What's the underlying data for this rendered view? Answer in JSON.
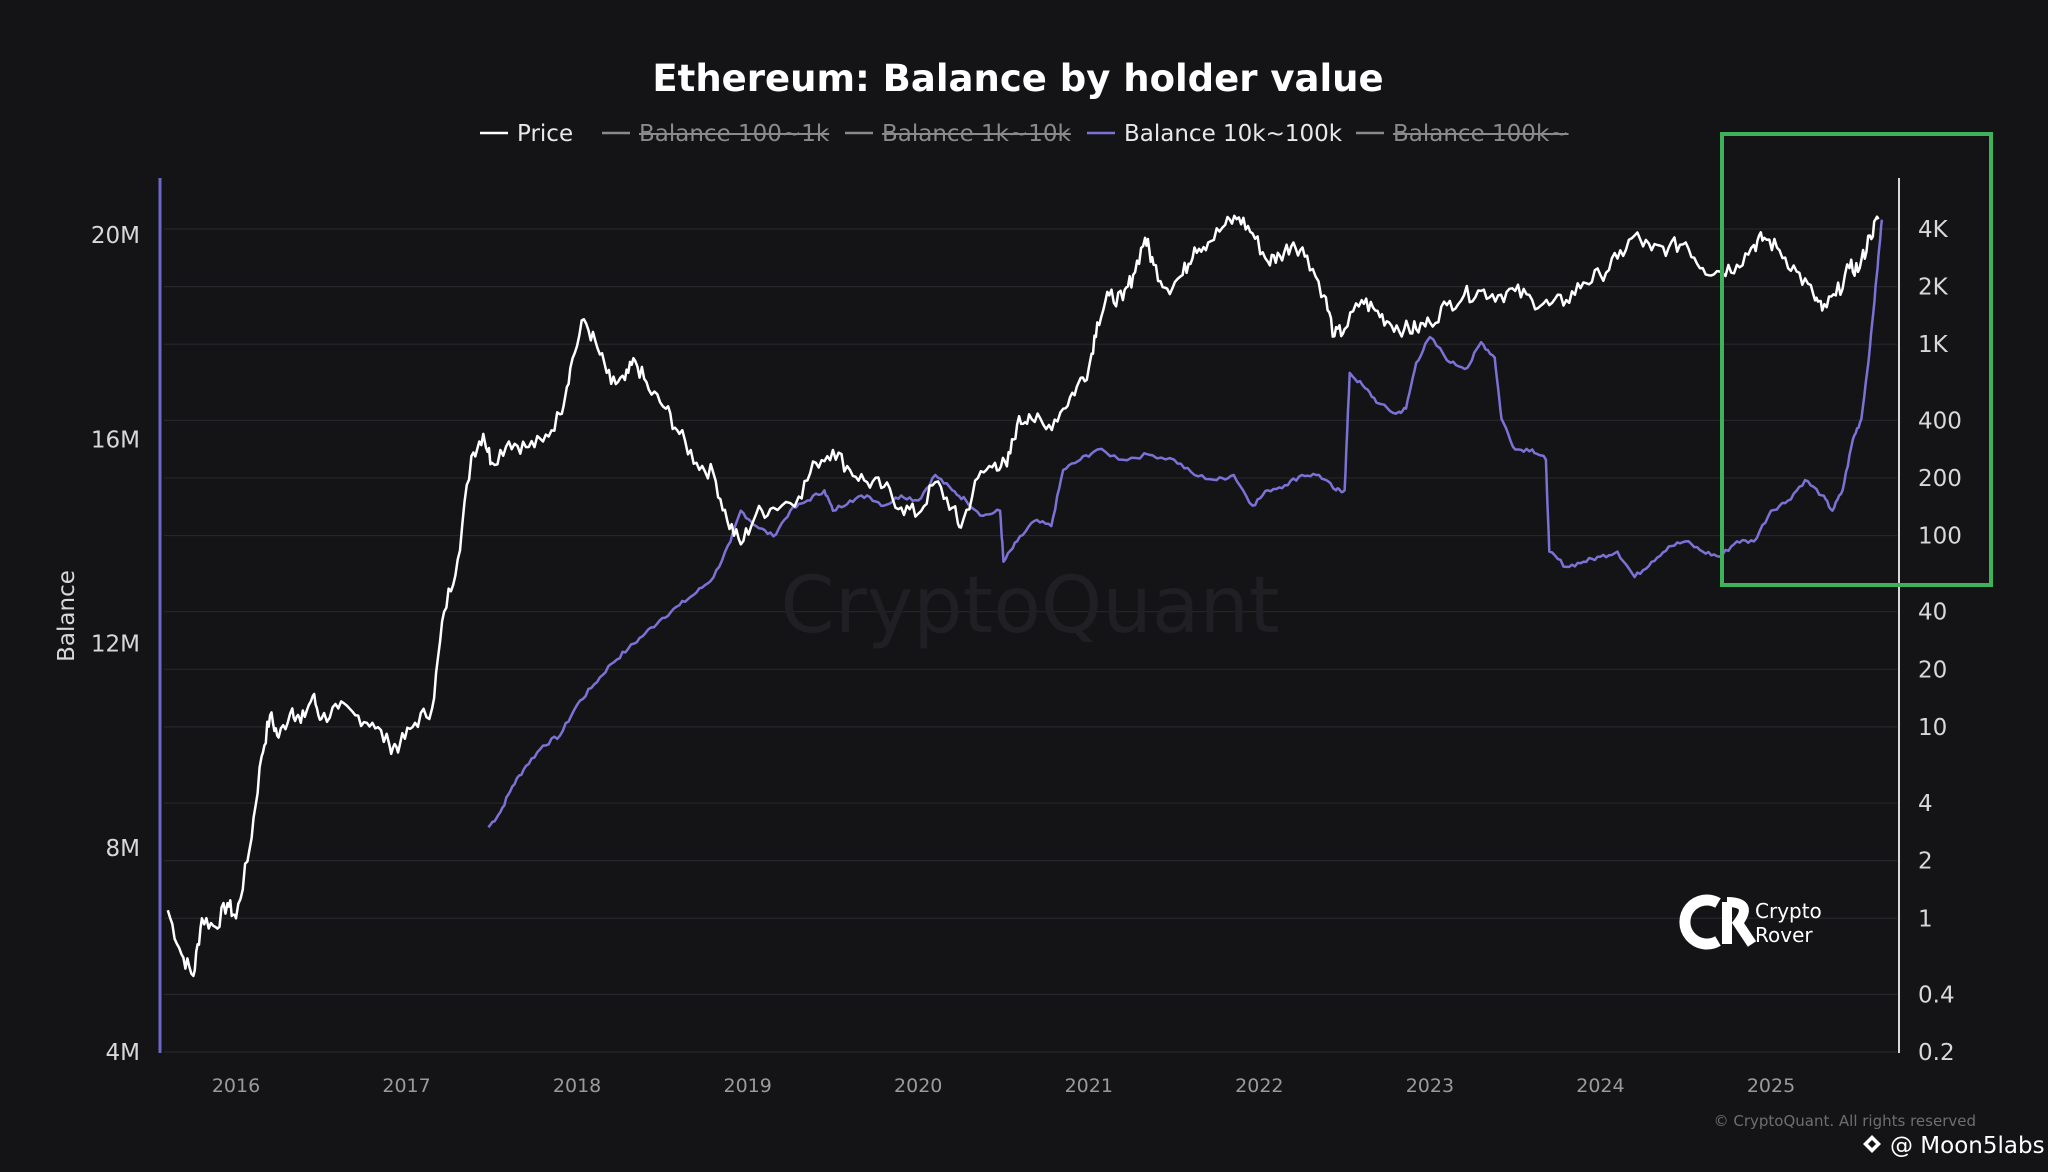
{
  "chart_data": {
    "type": "line",
    "title": "Ethereum: Balance by holder value",
    "ylabel": "Balance",
    "legend": [
      {
        "name": "Price",
        "color": "#ffffff",
        "active": true
      },
      {
        "name": "Balance 100~1k",
        "color": "#8a8a8a",
        "active": false
      },
      {
        "name": "Balance 1k~10k",
        "color": "#8a8a8a",
        "active": false
      },
      {
        "name": "Balance 10k~100k",
        "color": "#7b72d6",
        "active": true
      },
      {
        "name": "Balance 100k~",
        "color": "#8a8a8a",
        "active": false
      }
    ],
    "legend_placement": "top-center",
    "x_ticks": [
      "2016",
      "2017",
      "2018",
      "2019",
      "2020",
      "2021",
      "2022",
      "2023",
      "2024",
      "2025"
    ],
    "xlim": [
      2015.55,
      2025.7
    ],
    "y_left": {
      "label": "Balance",
      "ticks": [
        "20M",
        "16M",
        "12M",
        "8M",
        "4M"
      ],
      "tick_values": [
        20000000,
        16000000,
        12000000,
        8000000,
        4000000
      ],
      "range": [
        4000000,
        21000000
      ]
    },
    "y_right": {
      "scale": "log",
      "ticks": [
        "4K",
        "2K",
        "1K",
        "400",
        "200",
        "100",
        "40",
        "20",
        "10",
        "4",
        "2",
        "1",
        "0.4",
        "0.2"
      ],
      "tick_values": [
        4000,
        2000,
        1000,
        400,
        200,
        100,
        40,
        20,
        10,
        4,
        2,
        1,
        0.4,
        0.2
      ],
      "range": [
        0.2,
        8000
      ]
    },
    "grid": "horizontal",
    "highlight_box": {
      "x_range": [
        2024.7,
        2025.7
      ],
      "y_range_price": [
        60,
        8000
      ],
      "color": "#3fb15a"
    },
    "series": [
      {
        "name": "Price",
        "axis": "right",
        "color": "#ffffff",
        "points": [
          [
            2015.6,
            1.1
          ],
          [
            2015.68,
            0.65
          ],
          [
            2015.75,
            0.5
          ],
          [
            2015.8,
            1.0
          ],
          [
            2015.88,
            0.9
          ],
          [
            2015.95,
            1.2
          ],
          [
            2016.0,
            1.0
          ],
          [
            2016.08,
            2.3
          ],
          [
            2016.15,
            7.0
          ],
          [
            2016.2,
            11.5
          ],
          [
            2016.25,
            8.8
          ],
          [
            2016.33,
            12.5
          ],
          [
            2016.38,
            10.5
          ],
          [
            2016.45,
            14.5
          ],
          [
            2016.5,
            11.0
          ],
          [
            2016.6,
            12.5
          ],
          [
            2016.7,
            11.5
          ],
          [
            2016.8,
            10.5
          ],
          [
            2016.9,
            8.0
          ],
          [
            2016.96,
            8.0
          ],
          [
            2017.05,
            10.5
          ],
          [
            2017.15,
            12.5
          ],
          [
            2017.22,
            40.0
          ],
          [
            2017.3,
            75.0
          ],
          [
            2017.38,
            260
          ],
          [
            2017.45,
            340
          ],
          [
            2017.5,
            240
          ],
          [
            2017.6,
            310
          ],
          [
            2017.7,
            290
          ],
          [
            2017.8,
            310
          ],
          [
            2017.9,
            430
          ],
          [
            2017.96,
            750
          ],
          [
            2018.04,
            1350
          ],
          [
            2018.12,
            950
          ],
          [
            2018.2,
            620
          ],
          [
            2018.28,
            650
          ],
          [
            2018.34,
            820
          ],
          [
            2018.42,
            580
          ],
          [
            2018.52,
            460
          ],
          [
            2018.6,
            340
          ],
          [
            2018.7,
            240
          ],
          [
            2018.8,
            210
          ],
          [
            2018.88,
            120
          ],
          [
            2018.96,
            90
          ],
          [
            2019.05,
            130
          ],
          [
            2019.15,
            140
          ],
          [
            2019.3,
            160
          ],
          [
            2019.4,
            240
          ],
          [
            2019.5,
            280
          ],
          [
            2019.6,
            220
          ],
          [
            2019.7,
            190
          ],
          [
            2019.8,
            180
          ],
          [
            2019.9,
            140
          ],
          [
            2020.0,
            130
          ],
          [
            2020.1,
            190
          ],
          [
            2020.2,
            140
          ],
          [
            2020.25,
            110
          ],
          [
            2020.35,
            200
          ],
          [
            2020.45,
            240
          ],
          [
            2020.52,
            230
          ],
          [
            2020.58,
            380
          ],
          [
            2020.65,
            430
          ],
          [
            2020.75,
            360
          ],
          [
            2020.85,
            460
          ],
          [
            2020.93,
            600
          ],
          [
            2021.0,
            750
          ],
          [
            2021.05,
            1300
          ],
          [
            2021.12,
            1800
          ],
          [
            2021.2,
            1700
          ],
          [
            2021.26,
            2300
          ],
          [
            2021.33,
            3600
          ],
          [
            2021.38,
            2600
          ],
          [
            2021.46,
            1950
          ],
          [
            2021.55,
            2300
          ],
          [
            2021.62,
            3200
          ],
          [
            2021.7,
            3400
          ],
          [
            2021.8,
            4200
          ],
          [
            2021.88,
            4600
          ],
          [
            2021.96,
            3800
          ],
          [
            2022.05,
            2700
          ],
          [
            2022.12,
            2900
          ],
          [
            2022.2,
            3400
          ],
          [
            2022.28,
            2900
          ],
          [
            2022.38,
            1800
          ],
          [
            2022.44,
            1100
          ],
          [
            2022.5,
            1200
          ],
          [
            2022.6,
            1700
          ],
          [
            2022.68,
            1500
          ],
          [
            2022.76,
            1300
          ],
          [
            2022.85,
            1200
          ],
          [
            2022.92,
            1200
          ],
          [
            2023.0,
            1300
          ],
          [
            2023.1,
            1600
          ],
          [
            2023.2,
            1800
          ],
          [
            2023.3,
            1900
          ],
          [
            2023.4,
            1800
          ],
          [
            2023.5,
            1900
          ],
          [
            2023.6,
            1700
          ],
          [
            2023.7,
            1600
          ],
          [
            2023.8,
            1700
          ],
          [
            2023.9,
            2100
          ],
          [
            2024.0,
            2300
          ],
          [
            2024.1,
            2800
          ],
          [
            2024.2,
            3700
          ],
          [
            2024.3,
            3100
          ],
          [
            2024.4,
            3200
          ],
          [
            2024.5,
            3400
          ],
          [
            2024.6,
            2500
          ],
          [
            2024.7,
            2400
          ],
          [
            2024.8,
            2600
          ],
          [
            2024.9,
            3300
          ],
          [
            2024.96,
            3600
          ],
          [
            2025.05,
            3100
          ],
          [
            2025.15,
            2400
          ],
          [
            2025.25,
            1800
          ],
          [
            2025.3,
            1500
          ],
          [
            2025.38,
            1800
          ],
          [
            2025.46,
            2500
          ],
          [
            2025.52,
            2500
          ],
          [
            2025.58,
            3700
          ],
          [
            2025.63,
            4500
          ]
        ]
      },
      {
        "name": "Balance 10k~100k",
        "axis": "left",
        "color": "#7b72d6",
        "points": [
          [
            2017.48,
            8.4
          ],
          [
            2017.55,
            8.7
          ],
          [
            2017.62,
            9.2
          ],
          [
            2017.7,
            9.6
          ],
          [
            2017.8,
            10.0
          ],
          [
            2017.9,
            10.2
          ],
          [
            2018.0,
            10.8
          ],
          [
            2018.1,
            11.2
          ],
          [
            2018.2,
            11.6
          ],
          [
            2018.3,
            11.9
          ],
          [
            2018.4,
            12.2
          ],
          [
            2018.5,
            12.5
          ],
          [
            2018.6,
            12.75
          ],
          [
            2018.7,
            13.0
          ],
          [
            2018.8,
            13.3
          ],
          [
            2018.9,
            14.0
          ],
          [
            2018.96,
            14.6
          ],
          [
            2019.05,
            14.3
          ],
          [
            2019.15,
            14.1
          ],
          [
            2019.25,
            14.6
          ],
          [
            2019.35,
            14.8
          ],
          [
            2019.45,
            15.0
          ],
          [
            2019.5,
            14.6
          ],
          [
            2019.6,
            14.8
          ],
          [
            2019.7,
            14.9
          ],
          [
            2019.8,
            14.7
          ],
          [
            2019.9,
            14.9
          ],
          [
            2020.0,
            14.8
          ],
          [
            2020.1,
            15.3
          ],
          [
            2020.2,
            15.0
          ],
          [
            2020.28,
            14.8
          ],
          [
            2020.38,
            14.5
          ],
          [
            2020.48,
            14.6
          ],
          [
            2020.5,
            13.6
          ],
          [
            2020.58,
            14.0
          ],
          [
            2020.68,
            14.4
          ],
          [
            2020.78,
            14.3
          ],
          [
            2020.85,
            15.4
          ],
          [
            2020.95,
            15.6
          ],
          [
            2021.05,
            15.8
          ],
          [
            2021.2,
            15.6
          ],
          [
            2021.35,
            15.7
          ],
          [
            2021.5,
            15.6
          ],
          [
            2021.62,
            15.3
          ],
          [
            2021.75,
            15.2
          ],
          [
            2021.85,
            15.3
          ],
          [
            2021.96,
            14.7
          ],
          [
            2022.05,
            15.0
          ],
          [
            2022.15,
            15.1
          ],
          [
            2022.25,
            15.3
          ],
          [
            2022.35,
            15.3
          ],
          [
            2022.45,
            15.0
          ],
          [
            2022.5,
            15.0
          ],
          [
            2022.53,
            17.3
          ],
          [
            2022.62,
            17.0
          ],
          [
            2022.7,
            16.7
          ],
          [
            2022.8,
            16.5
          ],
          [
            2022.86,
            16.6
          ],
          [
            2022.92,
            17.5
          ],
          [
            2023.0,
            18.0
          ],
          [
            2023.12,
            17.5
          ],
          [
            2023.22,
            17.4
          ],
          [
            2023.3,
            17.9
          ],
          [
            2023.38,
            17.6
          ],
          [
            2023.42,
            16.4
          ],
          [
            2023.5,
            15.8
          ],
          [
            2023.6,
            15.8
          ],
          [
            2023.68,
            15.6
          ],
          [
            2023.7,
            13.8
          ],
          [
            2023.8,
            13.5
          ],
          [
            2023.9,
            13.6
          ],
          [
            2024.0,
            13.7
          ],
          [
            2024.1,
            13.8
          ],
          [
            2024.2,
            13.3
          ],
          [
            2024.3,
            13.6
          ],
          [
            2024.4,
            13.9
          ],
          [
            2024.5,
            14.0
          ],
          [
            2024.6,
            13.8
          ],
          [
            2024.7,
            13.7
          ],
          [
            2024.8,
            14.0
          ],
          [
            2024.9,
            14.0
          ],
          [
            2025.0,
            14.6
          ],
          [
            2025.1,
            14.8
          ],
          [
            2025.2,
            15.2
          ],
          [
            2025.3,
            14.9
          ],
          [
            2025.36,
            14.6
          ],
          [
            2025.42,
            15.0
          ],
          [
            2025.48,
            16.0
          ],
          [
            2025.53,
            16.4
          ],
          [
            2025.58,
            17.8
          ],
          [
            2025.62,
            19.2
          ],
          [
            2025.65,
            20.3
          ]
        ]
      }
    ]
  },
  "watermark": "CryptoQuant",
  "brand": {
    "line1": "Crypto",
    "line2": "Rover"
  },
  "copyright": "© CryptoQuant. All rights reserved",
  "credit": "@ Moon5labs"
}
